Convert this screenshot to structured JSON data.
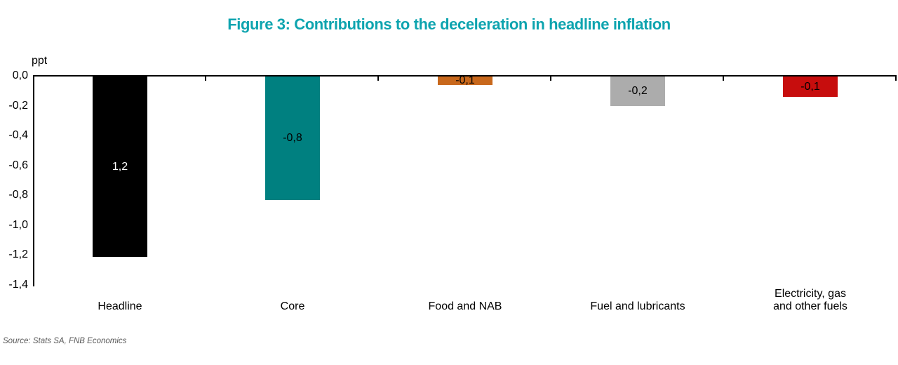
{
  "title": "Figure 3: Contributions to the deceleration in headline inflation",
  "axis_unit_label": "ppt",
  "source_note": "Source: Stats SA, FNB Economics",
  "colors": {
    "title_text": "#0EA4AF",
    "axis_line": "#000000",
    "source_text": "#595959",
    "category_label_text": "#000000"
  },
  "chart_data": {
    "type": "bar",
    "title": "Figure 3: Contributions to the deceleration in headline inflation",
    "xlabel": "",
    "ylabel": "ppt",
    "ylim": [
      -1.4,
      0
    ],
    "y_ticks": [
      "0,0",
      "-0,2",
      "-0,4",
      "-0,6",
      "-0,8",
      "-1,0",
      "-1,2",
      "-1,4"
    ],
    "y_tick_values": [
      0.0,
      -0.2,
      -0.4,
      -0.6,
      -0.8,
      -1.0,
      -1.2,
      -1.4
    ],
    "grid": false,
    "legend": false,
    "categories": [
      "Headline",
      "Core",
      "Food and NAB",
      "Fuel and lubricants",
      "Electricity, gas\nand other fuels"
    ],
    "values": [
      -1.2,
      -0.8,
      -0.1,
      -0.2,
      -0.1
    ],
    "bars": [
      {
        "category": "Headline",
        "value": -1.2,
        "label": "1,2",
        "color": "#000000",
        "label_color": "#ffffff",
        "plotted_value": -1.21
      },
      {
        "category": "Core",
        "value": -0.8,
        "label": "-0,8",
        "color": "#008080",
        "label_color": "#000000",
        "plotted_value": -0.83
      },
      {
        "category": "Food and NAB",
        "value": -0.1,
        "label": "-0,1",
        "color": "#C8681C",
        "label_color": "#000000",
        "plotted_value": -0.06
      },
      {
        "category": "Fuel and lubricants",
        "value": -0.2,
        "label": "-0,2",
        "color": "#ACACAC",
        "label_color": "#000000",
        "plotted_value": -0.2
      },
      {
        "category": "Electricity, gas\nand other fuels",
        "value": -0.1,
        "label": "-0,1",
        "color": "#C70D0D",
        "label_color": "#000000",
        "plotted_value": -0.14
      }
    ]
  }
}
